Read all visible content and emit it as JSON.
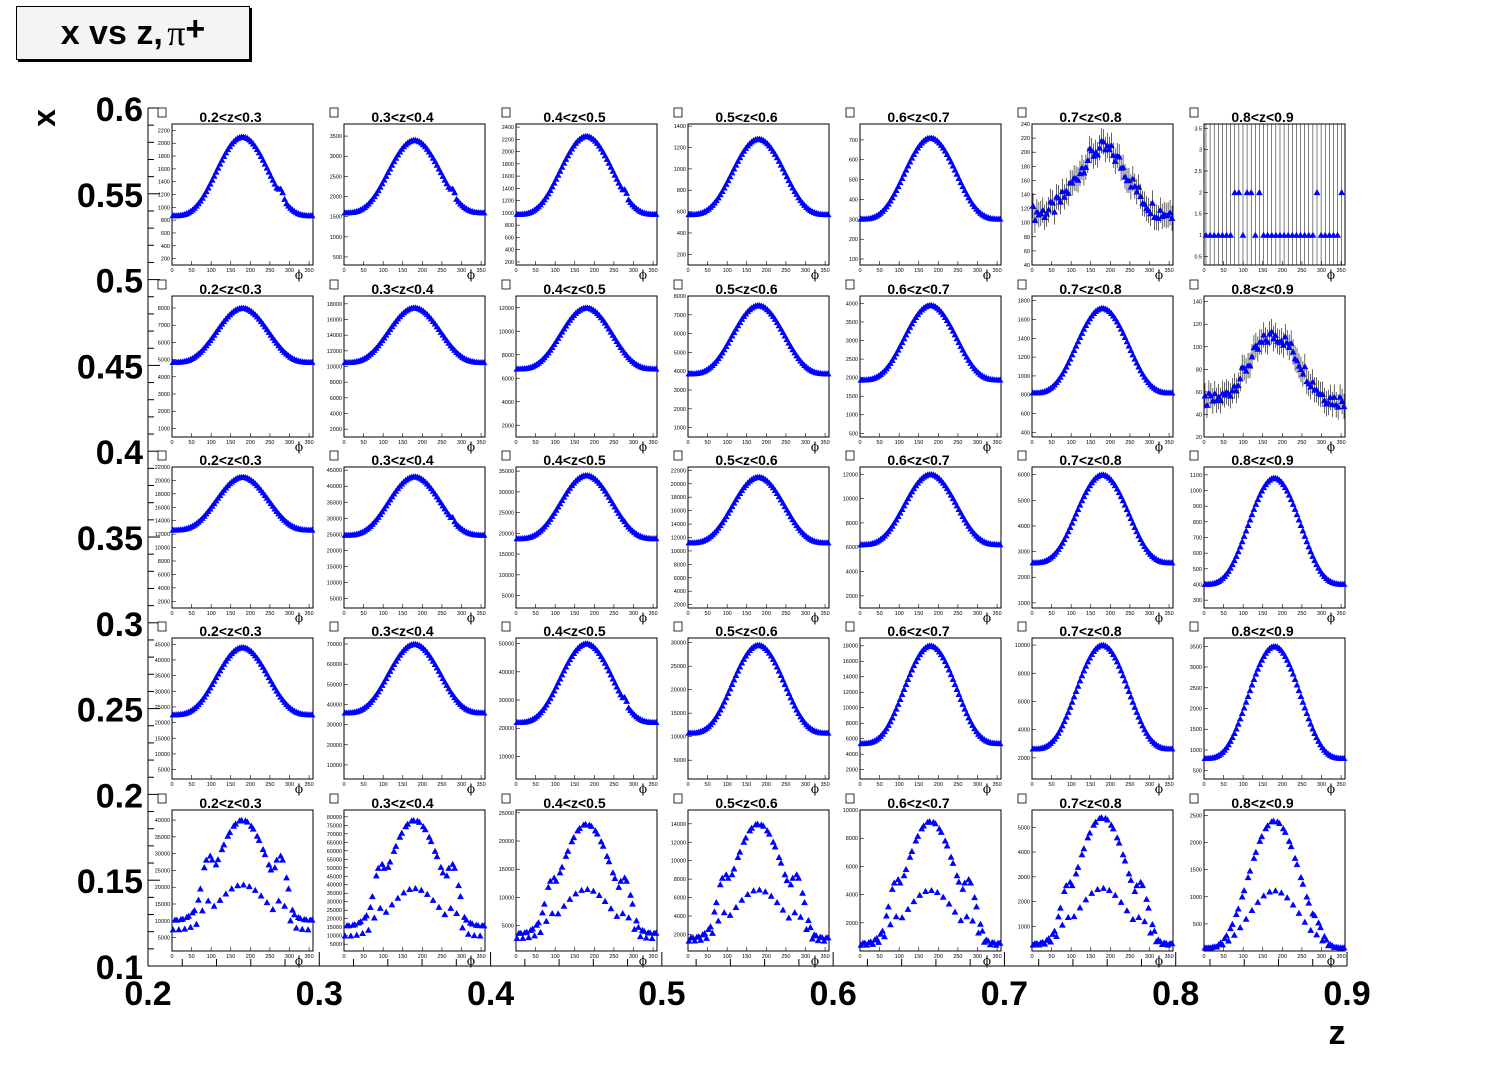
{
  "title": {
    "main": "x vs z,",
    "particle": "π",
    "charge": "+"
  },
  "chart_data": {
    "type": "scatter",
    "title": "x vs z, π+",
    "outer_axes": {
      "xlabel": "z",
      "ylabel": "x",
      "xlim": [
        0.2,
        0.9
      ],
      "ylim": [
        0.1,
        0.6
      ],
      "xticks": [
        "0.2",
        "0.3",
        "0.4",
        "0.5",
        "0.6",
        "0.7",
        "0.8",
        "0.9"
      ],
      "yticks": [
        "0.1",
        "0.15",
        "0.2",
        "0.25",
        "0.3",
        "0.35",
        "0.4",
        "0.45",
        "0.5",
        "0.55",
        "0.6"
      ]
    },
    "pad_xlabel": "ϕ",
    "pad_xlim": [
      0,
      360
    ],
    "pad_xticks": [
      "0",
      "50",
      "100",
      "150",
      "200",
      "250",
      "300",
      "350"
    ],
    "marker": {
      "shape": "triangle",
      "color": "#0000ff"
    },
    "z_bins": [
      "0.2<z<0.3",
      "0.3<z<0.4",
      "0.4<z<0.5",
      "0.5<z<0.6",
      "0.6<z<0.7",
      "0.7<z<0.8",
      "0.8<z<0.9"
    ],
    "rows": [
      {
        "pads": [
          {
            "yticks": [
              "200",
              "400",
              "600",
              "800",
              "1000",
              "1200",
              "1400",
              "1600",
              "1800",
              "2000",
              "2200"
            ],
            "ylim": [
              100,
              2300
            ],
            "valley_frac": 0.36,
            "side_frac": 0.58,
            "peak": 2100,
            "floor": 180
          },
          {
            "yticks": [
              "500",
              "1000",
              "1500",
              "2000",
              "2500",
              "3000",
              "3500"
            ],
            "ylim": [
              300,
              3800
            ],
            "valley_frac": 0.4,
            "side_frac": 0.6,
            "peak": 3400,
            "floor": 400
          },
          {
            "yticks": [
              "200",
              "400",
              "600",
              "800",
              "1000",
              "1200",
              "1400",
              "1600",
              "1800",
              "2000",
              "2200",
              "2400"
            ],
            "ylim": [
              150,
              2450
            ],
            "valley_frac": 0.38,
            "side_frac": 0.58,
            "peak": 2250,
            "floor": 200
          },
          {
            "yticks": [
              "200",
              "400",
              "600",
              "800",
              "1000",
              "1200",
              "1400"
            ],
            "ylim": [
              100,
              1420
            ],
            "valley_frac": 0.38,
            "side_frac": 0.55,
            "peak": 1280,
            "floor": 140
          },
          {
            "yticks": [
              "100",
              "200",
              "300",
              "400",
              "500",
              "600",
              "700"
            ],
            "ylim": [
              70,
              780
            ],
            "valley_frac": 0.32,
            "side_frac": 0.38,
            "peak": 710,
            "floor": 110
          },
          {
            "yticks": [
              "40",
              "60",
              "80",
              "100",
              "120",
              "140",
              "160",
              "180",
              "200",
              "220",
              "240"
            ],
            "ylim": [
              40,
              240
            ],
            "valley_frac": 0.3,
            "side_frac": 0.3,
            "peak": 205,
            "floor": 75,
            "errors": true
          },
          {
            "yticks": [
              "0.5",
              "1",
              "1.5",
              "2",
              "2.5",
              "3",
              "3.5"
            ],
            "ylim": [
              0.3,
              3.6
            ],
            "counts": true
          }
        ]
      },
      {
        "pads": [
          {
            "yticks": [
              "1000",
              "2000",
              "3000",
              "4000",
              "5000",
              "6000",
              "7000",
              "8000"
            ],
            "ylim": [
              500,
              8700
            ],
            "valley_frac": 0.55,
            "side_frac": 0.62,
            "peak": 8000,
            "floor": 1000
          },
          {
            "yticks": [
              "2000",
              "4000",
              "6000",
              "8000",
              "10000",
              "12000",
              "14000",
              "16000",
              "18000"
            ],
            "ylim": [
              1000,
              19000
            ],
            "valley_frac": 0.55,
            "side_frac": 0.62,
            "peak": 17500,
            "floor": 2000
          },
          {
            "yticks": [
              "2000",
              "4000",
              "6000",
              "8000",
              "10000",
              "12000"
            ],
            "ylim": [
              1000,
              13000
            ],
            "valley_frac": 0.5,
            "side_frac": 0.58,
            "peak": 12000,
            "floor": 1600
          },
          {
            "yticks": [
              "1000",
              "2000",
              "3000",
              "4000",
              "5000",
              "6000",
              "7000",
              "8000"
            ],
            "ylim": [
              500,
              8000
            ],
            "valley_frac": 0.45,
            "side_frac": 0.52,
            "peak": 7500,
            "floor": 900
          },
          {
            "yticks": [
              "500",
              "1000",
              "1500",
              "2000",
              "2500",
              "3000",
              "3500",
              "4000"
            ],
            "ylim": [
              400,
              4200
            ],
            "valley_frac": 0.4,
            "side_frac": 0.42,
            "peak": 3950,
            "floor": 600
          },
          {
            "yticks": [
              "400",
              "600",
              "800",
              "1000",
              "1200",
              "1400",
              "1600",
              "1800"
            ],
            "ylim": [
              350,
              1850
            ],
            "valley_frac": 0.25,
            "side_frac": 0.25,
            "peak": 1720,
            "floor": 520
          },
          {
            "yticks": [
              "20",
              "40",
              "60",
              "80",
              "100",
              "120",
              "140"
            ],
            "ylim": [
              20,
              145
            ],
            "valley_frac": 0.2,
            "side_frac": 0.2,
            "peak": 110,
            "floor": 38,
            "errors": true
          }
        ]
      },
      {
        "pads": [
          {
            "yticks": [
              "2000",
              "4000",
              "6000",
              "8000",
              "10000",
              "12000",
              "14000",
              "16000",
              "18000",
              "20000",
              "22000"
            ],
            "ylim": [
              1000,
              22000
            ],
            "valley_frac": 0.55,
            "side_frac": 0.67,
            "peak": 20500,
            "floor": 3000
          },
          {
            "yticks": [
              "5000",
              "10000",
              "15000",
              "20000",
              "25000",
              "30000",
              "35000",
              "40000",
              "45000"
            ],
            "ylim": [
              2000,
              46000
            ],
            "valley_frac": 0.52,
            "side_frac": 0.67,
            "peak": 43000,
            "floor": 5000
          },
          {
            "yticks": [
              "5000",
              "10000",
              "15000",
              "20000",
              "25000",
              "30000",
              "35000"
            ],
            "ylim": [
              2000,
              36000
            ],
            "valley_frac": 0.5,
            "side_frac": 0.64,
            "peak": 34000,
            "floor": 3500
          },
          {
            "yticks": [
              "2000",
              "4000",
              "6000",
              "8000",
              "10000",
              "12000",
              "14000",
              "16000",
              "18000",
              "20000",
              "22000"
            ],
            "ylim": [
              1500,
              22500
            ],
            "valley_frac": 0.48,
            "side_frac": 0.58,
            "peak": 21000,
            "floor": 2200
          },
          {
            "yticks": [
              "2000",
              "4000",
              "6000",
              "8000",
              "10000",
              "12000"
            ],
            "ylim": [
              1000,
              12600
            ],
            "valley_frac": 0.45,
            "side_frac": 0.5,
            "peak": 12000,
            "floor": 1500
          },
          {
            "yticks": [
              "1000",
              "2000",
              "3000",
              "4000",
              "5000",
              "6000"
            ],
            "ylim": [
              800,
              6300
            ],
            "valley_frac": 0.3,
            "side_frac": 0.3,
            "peak": 6000,
            "floor": 1100
          },
          {
            "yticks": [
              "300",
              "400",
              "500",
              "600",
              "700",
              "800",
              "900",
              "1000",
              "1100"
            ],
            "ylim": [
              250,
              1150
            ],
            "valley_frac": 0.12,
            "side_frac": 0.12,
            "peak": 1080,
            "floor": 310
          }
        ]
      },
      {
        "pads": [
          {
            "yticks": [
              "5000",
              "10000",
              "15000",
              "20000",
              "25000",
              "30000",
              "35000",
              "40000",
              "45000"
            ],
            "ylim": [
              2000,
              47000
            ],
            "valley_frac": 0.45,
            "side_frac": 0.58,
            "peak": 44000,
            "floor": 5000
          },
          {
            "yticks": [
              "10000",
              "20000",
              "30000",
              "40000",
              "50000",
              "60000",
              "70000"
            ],
            "ylim": [
              3000,
              73000
            ],
            "valley_frac": 0.45,
            "side_frac": 0.6,
            "peak": 70000,
            "floor": 8000
          },
          {
            "yticks": [
              "10000",
              "20000",
              "30000",
              "40000",
              "50000"
            ],
            "ylim": [
              2000,
              52000
            ],
            "valley_frac": 0.38,
            "side_frac": 0.58,
            "peak": 50000,
            "floor": 5000
          },
          {
            "yticks": [
              "5000",
              "10000",
              "15000",
              "20000",
              "25000",
              "30000"
            ],
            "ylim": [
              1000,
              31000
            ],
            "valley_frac": 0.32,
            "side_frac": 0.5,
            "peak": 29500,
            "floor": 2000
          },
          {
            "yticks": [
              "2000",
              "4000",
              "6000",
              "8000",
              "10000",
              "12000",
              "14000",
              "16000",
              "18000"
            ],
            "ylim": [
              800,
              19000
            ],
            "valley_frac": 0.25,
            "side_frac": 0.42,
            "peak": 18000,
            "floor": 1200
          },
          {
            "yticks": [
              "2000",
              "4000",
              "6000",
              "8000",
              "10000"
            ],
            "ylim": [
              500,
              10500
            ],
            "valley_frac": 0.2,
            "side_frac": 0.35,
            "peak": 10000,
            "floor": 800
          },
          {
            "yticks": [
              "500",
              "1000",
              "1500",
              "2000",
              "2500",
              "3000",
              "3500"
            ],
            "ylim": [
              300,
              3700
            ],
            "valley_frac": 0.1,
            "side_frac": 0.1,
            "peak": 3500,
            "floor": 500
          }
        ]
      },
      {
        "pads": [
          {
            "yticks": [
              "5000",
              "10000",
              "15000",
              "20000",
              "25000",
              "30000",
              "35000",
              "40000"
            ],
            "ylim": [
              1000,
              43000
            ],
            "valley_frac": 0.15,
            "side_frac": 0.7,
            "peak": 40000,
            "floor": 5000,
            "dips": true
          },
          {
            "yticks": [
              "5000",
              "10000",
              "15000",
              "20000",
              "25000",
              "30000",
              "35000",
              "40000",
              "45000",
              "50000",
              "55000",
              "60000",
              "65000",
              "70000",
              "75000",
              "80000"
            ],
            "ylim": [
              1000,
              84000
            ],
            "valley_frac": 0.15,
            "side_frac": 0.65,
            "peak": 78000,
            "floor": 5000,
            "dips": true
          },
          {
            "yticks": [
              "5000",
              "10000",
              "15000",
              "20000",
              "25000"
            ],
            "ylim": [
              500,
              25500
            ],
            "valley_frac": 0.08,
            "side_frac": 0.55,
            "peak": 23000,
            "floor": 2000,
            "dips": true
          },
          {
            "yticks": [
              "2000",
              "4000",
              "6000",
              "8000",
              "10000",
              "12000",
              "14000"
            ],
            "ylim": [
              200,
              15500
            ],
            "valley_frac": 0.05,
            "side_frac": 0.58,
            "peak": 14000,
            "floor": 1000,
            "dips": true
          },
          {
            "yticks": [
              "2000",
              "4000",
              "6000",
              "8000",
              "10000"
            ],
            "ylim": [
              0,
              10000
            ],
            "valley_frac": 0.03,
            "side_frac": 0.54,
            "peak": 9200,
            "floor": 300,
            "dips": true
          },
          {
            "yticks": [
              "1000",
              "2000",
              "3000",
              "4000",
              "5000"
            ],
            "ylim": [
              0,
              5700
            ],
            "valley_frac": 0.02,
            "side_frac": 0.5,
            "peak": 5400,
            "floor": 200,
            "dips": true
          },
          {
            "yticks": [
              "500",
              "1000",
              "1500",
              "2000",
              "2500"
            ],
            "ylim": [
              0,
              2600
            ],
            "valley_frac": 0.0,
            "side_frac": 0.27,
            "peak": 2400,
            "floor": 60,
            "dips": true
          }
        ]
      }
    ]
  }
}
